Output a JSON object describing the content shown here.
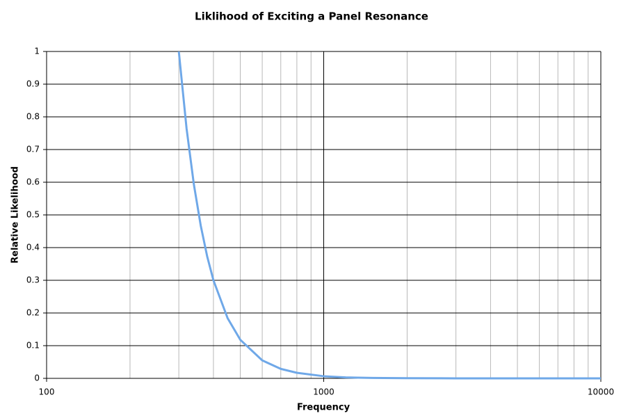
{
  "chart_data": {
    "type": "line",
    "title": "Liklihood of Exciting a Panel Resonance",
    "x_label": "Frequency",
    "y_label": "Relative Likelihood",
    "x_log": true,
    "grid": true,
    "x": [
      300,
      320,
      340,
      360,
      380,
      400,
      450,
      500,
      600,
      700,
      800,
      1000,
      1200,
      1500,
      2000,
      3000,
      5000,
      10000
    ],
    "series": [
      {
        "name": "Relative Likelihood",
        "color": "#6fa8e8",
        "values": [
          1,
          0.764,
          0.593,
          0.467,
          0.372,
          0.3,
          0.184,
          0.118,
          0.055,
          0.029,
          0.017,
          0.0065,
          0.003,
          0.0012,
          0.0004,
          0.0001,
          0,
          0
        ]
      }
    ],
    "xlim": [
      100,
      10000
    ],
    "xticks": [
      100,
      1000,
      10000
    ],
    "ylim": [
      0,
      1
    ],
    "yticks": [
      0,
      0.1,
      0.2,
      0.3,
      0.4,
      0.5,
      0.6,
      0.7,
      0.8,
      0.9,
      1
    ]
  }
}
